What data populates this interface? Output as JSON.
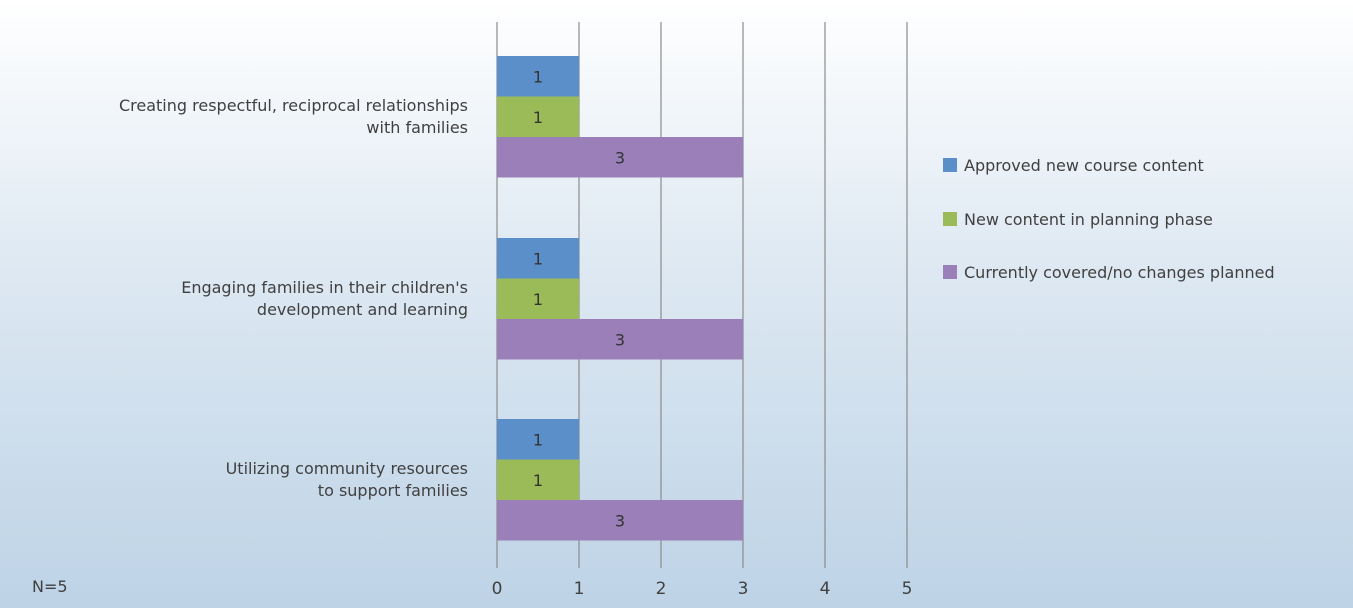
{
  "chart_data": {
    "type": "bar",
    "orientation": "horizontal",
    "categories": [
      [
        "Creating respectful, reciprocal relationships",
        "with families"
      ],
      [
        "Engaging families in their children's",
        "development and learning"
      ],
      [
        "Utilizing community resources",
        "to support families"
      ]
    ],
    "series": [
      {
        "name": "Approved new course content",
        "color": "#5b8fc9",
        "values": [
          1,
          1,
          1
        ]
      },
      {
        "name": "New content in planning phase",
        "color": "#9bbb59",
        "values": [
          1,
          1,
          1
        ]
      },
      {
        "name": "Currently covered/no changes planned",
        "color": "#9a7fb8",
        "values": [
          3,
          3,
          3
        ]
      }
    ],
    "xlim": [
      0,
      5
    ],
    "xticks": [
      "0",
      "1",
      "2",
      "3",
      "4",
      "5"
    ],
    "grid": true,
    "legend_position": "right",
    "note": "N=5"
  }
}
